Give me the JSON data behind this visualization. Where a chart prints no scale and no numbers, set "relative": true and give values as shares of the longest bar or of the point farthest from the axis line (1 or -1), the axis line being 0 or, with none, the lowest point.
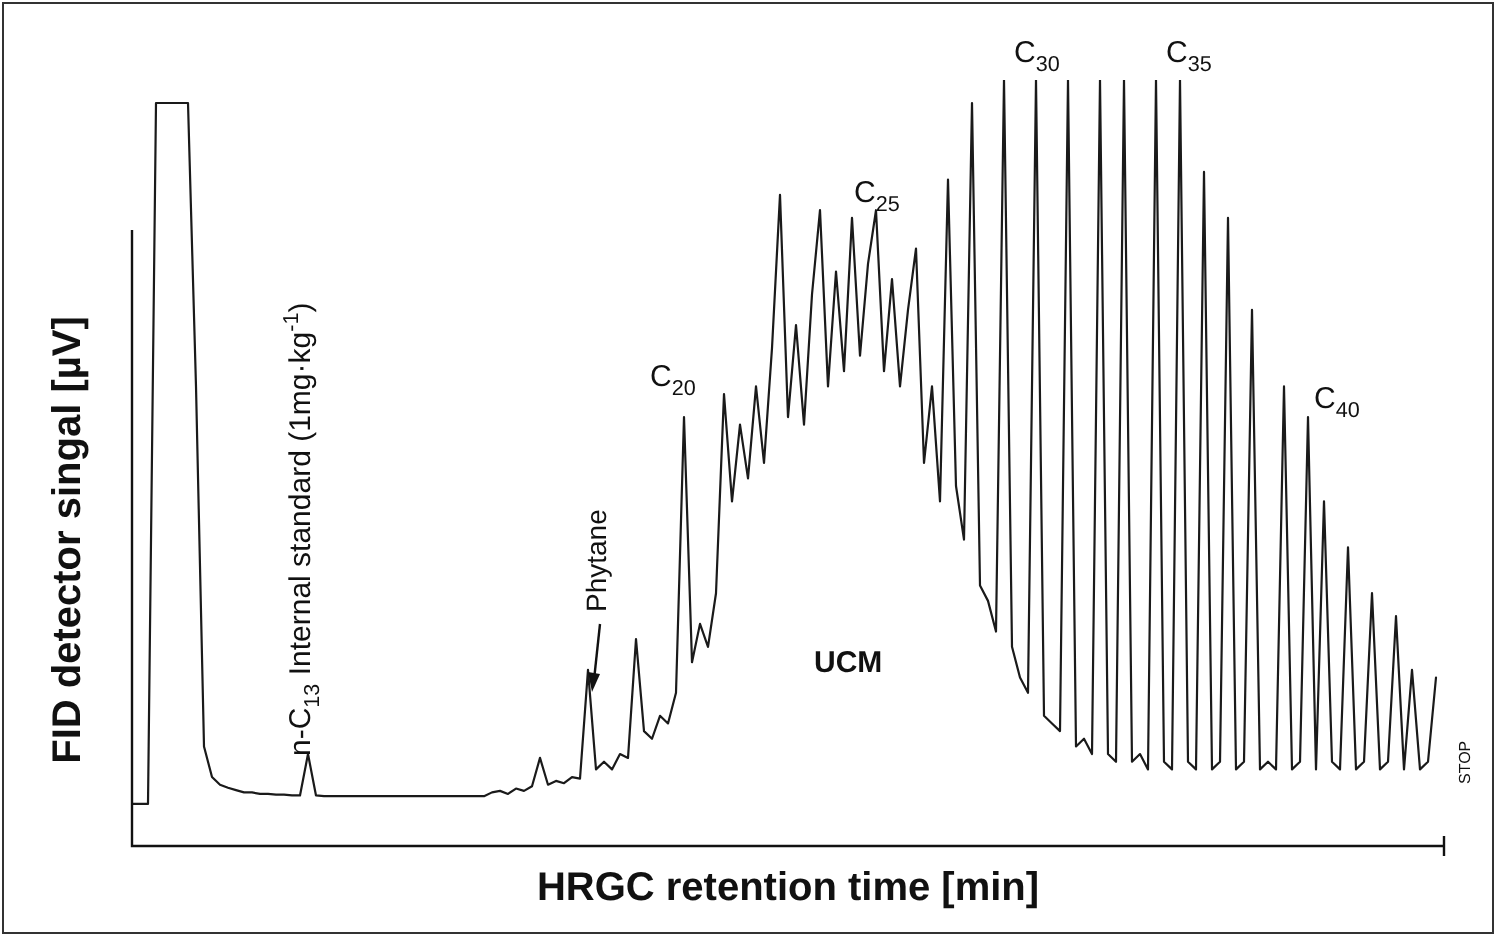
{
  "chart_data": {
    "type": "line",
    "relative": true,
    "xlabel": "HRGC retention time [min]",
    "ylabel": "FID detector singal [µV]",
    "color": "#1a1a1a",
    "marker": "none",
    "line_style": "solid",
    "tick_labels": false,
    "categories": [
      null,
      null,
      null,
      null,
      null,
      null,
      null,
      null,
      null,
      null,
      null,
      null,
      null,
      null,
      null,
      null,
      null,
      null,
      null,
      null,
      null,
      null,
      null,
      null,
      null,
      null,
      null,
      null,
      null,
      null,
      null,
      null,
      null,
      null,
      null,
      null,
      null,
      null,
      null,
      null,
      null,
      null,
      null,
      null,
      null,
      null,
      null,
      null,
      null,
      null,
      null,
      null,
      null,
      null,
      null,
      null,
      null,
      null,
      null,
      null,
      null,
      null,
      null,
      null,
      null,
      null,
      null,
      null,
      null,
      null,
      null,
      null,
      null,
      null,
      null,
      null,
      null,
      null,
      null,
      null,
      null,
      null,
      null,
      null,
      null,
      null,
      null,
      null,
      null,
      null,
      null,
      null,
      null,
      null,
      null,
      null,
      null,
      null,
      null,
      null,
      null,
      null,
      null,
      null,
      null,
      null,
      null,
      null,
      null,
      null,
      null,
      null,
      null,
      null,
      null,
      null,
      null,
      null,
      null,
      null,
      null,
      null,
      null,
      null,
      null,
      null,
      null,
      null,
      null,
      null,
      null,
      null,
      null,
      null,
      null,
      null,
      null,
      null,
      null,
      null,
      null,
      null,
      null,
      null,
      null,
      null,
      null,
      null,
      null,
      null,
      null,
      null,
      null,
      null,
      null,
      null,
      null,
      null,
      null,
      null,
      null,
      null,
      null,
      null,
      null
    ],
    "values": [
      0.055,
      0.055,
      0.055,
      0.97,
      0.97,
      0.97,
      0.97,
      0.97,
      0.6,
      0.13,
      0.09,
      0.08,
      0.076,
      0.073,
      0.07,
      0.07,
      0.068,
      0.068,
      0.067,
      0.067,
      0.066,
      0.066,
      0.12,
      0.066,
      0.065,
      0.065,
      0.065,
      0.065,
      0.065,
      0.065,
      0.065,
      0.065,
      0.065,
      0.065,
      0.065,
      0.065,
      0.065,
      0.065,
      0.065,
      0.065,
      0.065,
      0.065,
      0.065,
      0.065,
      0.065,
      0.07,
      0.072,
      0.068,
      0.075,
      0.072,
      0.078,
      0.115,
      0.08,
      0.085,
      0.082,
      0.09,
      0.088,
      0.23,
      0.1,
      0.11,
      0.1,
      0.12,
      0.115,
      0.27,
      0.15,
      0.14,
      0.17,
      0.16,
      0.2,
      0.56,
      0.24,
      0.29,
      0.26,
      0.33,
      0.59,
      0.45,
      0.55,
      0.48,
      0.6,
      0.5,
      0.65,
      0.85,
      0.56,
      0.68,
      0.55,
      0.72,
      0.83,
      0.6,
      0.75,
      0.62,
      0.82,
      0.64,
      0.76,
      0.83,
      0.62,
      0.74,
      0.6,
      0.7,
      0.78,
      0.5,
      0.6,
      0.45,
      0.87,
      0.47,
      0.4,
      0.97,
      0.34,
      0.32,
      0.28,
      1.0,
      0.26,
      0.22,
      0.2,
      1.0,
      0.17,
      0.16,
      0.15,
      1.0,
      0.13,
      0.14,
      0.12,
      1.0,
      0.12,
      0.11,
      1.0,
      0.11,
      0.12,
      0.1,
      1.0,
      0.11,
      0.1,
      1.0,
      0.11,
      0.1,
      0.88,
      0.1,
      0.11,
      0.82,
      0.1,
      0.11,
      0.7,
      0.1,
      0.11,
      0.1,
      0.6,
      0.1,
      0.11,
      0.56,
      0.1,
      0.45,
      0.11,
      0.1,
      0.39,
      0.1,
      0.11,
      0.33,
      0.1,
      0.11,
      0.3,
      0.1,
      0.23,
      0.1,
      0.11,
      0.22,
      null
    ],
    "annotations": [
      "n-C$_{13}$ Internal standard (1mg·kg$^{-1}$)",
      "Phytane",
      "C$_{20}$",
      "C$_{25}$",
      "C$_{30}$",
      "C$_{35}$",
      "C$_{40}$",
      "UCM",
      "STOP"
    ]
  }
}
